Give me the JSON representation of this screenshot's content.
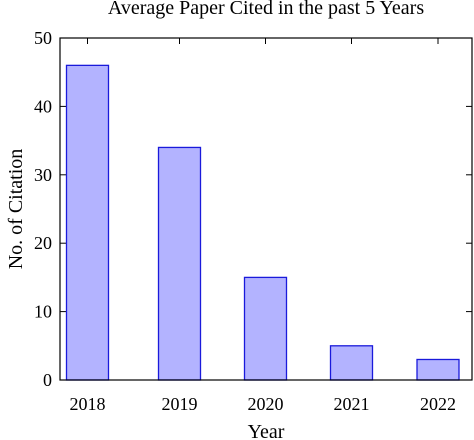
{
  "chart_data": {
    "type": "bar",
    "title": "Average Paper Cited in the past 5 Years",
    "xlabel": "Year",
    "ylabel": "No. of Citation",
    "categories": [
      "2018",
      "2019",
      "2020",
      "2021",
      "2022"
    ],
    "values": [
      46,
      34,
      15,
      5,
      3
    ],
    "ylim": [
      0,
      50
    ],
    "yticks": [
      0,
      10,
      20,
      30,
      40,
      50
    ],
    "grid": false,
    "legend": "none",
    "colors": {
      "bar_fill": "#b3b3ff",
      "bar_stroke": "#1a1adb",
      "axis": "#000000"
    }
  }
}
